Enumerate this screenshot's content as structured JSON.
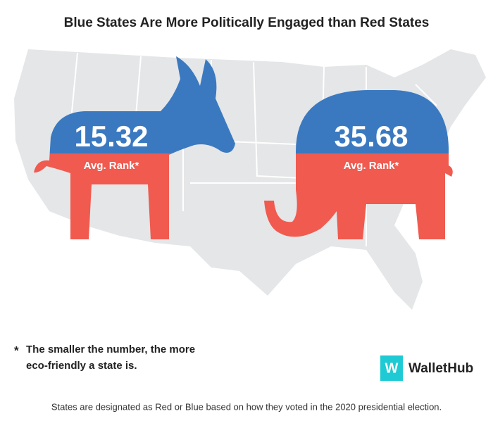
{
  "title": "Blue States Are More Politically Engaged than Red States",
  "groups": [
    {
      "value": 15.32,
      "label": "Avg. Rank*"
    },
    {
      "value": 35.68,
      "label": "Avg. Rank*"
    }
  ],
  "footnote_marker": "*",
  "footnote": [
    "The smaller the number, the more",
    "eco-friendly a state is."
  ],
  "logo": {
    "mark": "W",
    "name": "WalletHub"
  },
  "source": "States are designated as Red or Blue based on how they voted in the 2020 presidential election."
}
